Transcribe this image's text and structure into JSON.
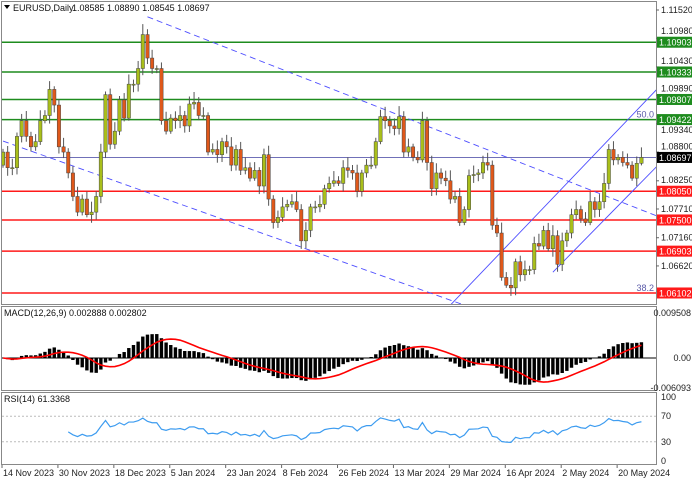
{
  "header": {
    "symbol": "EURUSD,Daily",
    "ohlc": "1.08585 1.08890 1.08545 1.08697"
  },
  "colors": {
    "bull": "#a9bf1a",
    "bear": "#e0581a",
    "resistance": "#1e8c1e",
    "support": "#ff1a1a",
    "current": "#000000",
    "trendline": "#4d4dff",
    "macd_hist": "#000000",
    "macd_signal": "#ff0000",
    "rsi": "#3d9cf0"
  },
  "chart_data": {
    "type": "candlestick",
    "symbol": "EURUSD",
    "timeframe": "Daily",
    "price_axis_ticks": [
      "1.11520",
      "1.10980",
      "1.10430",
      "1.09890",
      "1.09340",
      "1.08800",
      "1.08250",
      "1.07710",
      "1.07160",
      "1.06620"
    ],
    "price_range": [
      1.0585,
      1.1172
    ],
    "date_labels": [
      "14 Nov 2023",
      "30 Nov 2023",
      "18 Dec 2023",
      "5 Jan 2024",
      "23 Jan 2024",
      "8 Feb 2024",
      "26 Feb 2024",
      "13 Mar 2024",
      "29 Mar 2024",
      "16 Apr 2024",
      "2 May 2024",
      "20 May 2024"
    ],
    "last_bar": {
      "open": 1.08585,
      "high": 1.0889,
      "low": 1.08545,
      "close": 1.08697
    },
    "closes": [
      [
        "2023-11-14",
        1.088
      ],
      [
        "2023-11-15",
        1.085
      ],
      [
        "2023-11-16",
        1.085
      ],
      [
        "2023-11-17",
        1.091
      ],
      [
        "2023-11-20",
        1.094
      ],
      [
        "2023-11-21",
        1.091
      ],
      [
        "2023-11-22",
        1.089
      ],
      [
        "2023-11-23",
        1.09
      ],
      [
        "2023-11-24",
        1.094
      ],
      [
        "2023-11-27",
        1.095
      ],
      [
        "2023-11-28",
        1.1
      ],
      [
        "2023-11-29",
        1.097
      ],
      [
        "2023-11-30",
        1.089
      ],
      [
        "2023-12-01",
        1.088
      ],
      [
        "2023-12-04",
        1.084
      ],
      [
        "2023-12-05",
        1.0795
      ],
      [
        "2023-12-06",
        1.0765
      ],
      [
        "2023-12-07",
        1.079
      ],
      [
        "2023-12-08",
        1.076
      ],
      [
        "2023-12-11",
        1.0765
      ],
      [
        "2023-12-12",
        1.0795
      ],
      [
        "2023-12-13",
        1.088
      ],
      [
        "2023-12-14",
        1.099
      ],
      [
        "2023-12-15",
        1.0895
      ],
      [
        "2023-12-18",
        1.092
      ],
      [
        "2023-12-19",
        1.098
      ],
      [
        "2023-12-20",
        1.0945
      ],
      [
        "2023-12-21",
        1.101
      ],
      [
        "2023-12-22",
        1.101
      ],
      [
        "2023-12-26",
        1.104
      ],
      [
        "2023-12-27",
        1.1105
      ],
      [
        "2023-12-28",
        1.106
      ],
      [
        "2023-12-29",
        1.104
      ],
      [
        "2024-01-01",
        1.104
      ],
      [
        "2024-01-02",
        1.094
      ],
      [
        "2024-01-03",
        1.092
      ],
      [
        "2024-01-04",
        1.0945
      ],
      [
        "2024-01-05",
        1.094
      ],
      [
        "2024-01-08",
        1.095
      ],
      [
        "2024-01-09",
        1.093
      ],
      [
        "2024-01-10",
        1.0972
      ],
      [
        "2024-01-11",
        1.0975
      ],
      [
        "2024-01-12",
        1.095
      ],
      [
        "2024-01-15",
        1.095
      ],
      [
        "2024-01-16",
        1.088
      ],
      [
        "2024-01-17",
        1.0885
      ],
      [
        "2024-01-18",
        1.0875
      ],
      [
        "2024-01-19",
        1.09
      ],
      [
        "2024-01-22",
        1.089
      ],
      [
        "2024-01-23",
        1.0855
      ],
      [
        "2024-01-24",
        1.0885
      ],
      [
        "2024-01-25",
        1.0845
      ],
      [
        "2024-01-26",
        1.085
      ],
      [
        "2024-01-29",
        1.083
      ],
      [
        "2024-01-30",
        1.0845
      ],
      [
        "2024-01-31",
        1.0815
      ],
      [
        "2024-02-01",
        1.0875
      ],
      [
        "2024-02-02",
        1.079
      ],
      [
        "2024-02-05",
        1.0745
      ],
      [
        "2024-02-06",
        1.0755
      ],
      [
        "2024-02-07",
        1.0775
      ],
      [
        "2024-02-08",
        1.078
      ],
      [
        "2024-02-09",
        1.0785
      ],
      [
        "2024-02-12",
        1.077
      ],
      [
        "2024-02-13",
        1.071
      ],
      [
        "2024-02-14",
        1.073
      ],
      [
        "2024-02-15",
        1.0775
      ],
      [
        "2024-02-16",
        1.0775
      ],
      [
        "2024-02-19",
        1.078
      ],
      [
        "2024-02-20",
        1.081
      ],
      [
        "2024-02-21",
        1.082
      ],
      [
        "2024-02-22",
        1.0825
      ],
      [
        "2024-02-23",
        1.082
      ],
      [
        "2024-02-26",
        1.085
      ],
      [
        "2024-02-27",
        1.0845
      ],
      [
        "2024-02-28",
        1.084
      ],
      [
        "2024-02-29",
        1.0805
      ],
      [
        "2024-03-01",
        1.084
      ],
      [
        "2024-03-04",
        1.0855
      ],
      [
        "2024-03-05",
        1.0855
      ],
      [
        "2024-03-06",
        1.09
      ],
      [
        "2024-03-07",
        1.0948
      ],
      [
        "2024-03-08",
        1.094
      ],
      [
        "2024-03-11",
        1.093
      ],
      [
        "2024-03-12",
        1.0925
      ],
      [
        "2024-03-13",
        1.0948
      ],
      [
        "2024-03-14",
        1.088
      ],
      [
        "2024-03-15",
        1.089
      ],
      [
        "2024-03-18",
        1.087
      ],
      [
        "2024-03-19",
        1.0865
      ],
      [
        "2024-03-20",
        1.094
      ],
      [
        "2024-03-21",
        1.086
      ],
      [
        "2024-03-22",
        1.081
      ],
      [
        "2024-03-25",
        1.084
      ],
      [
        "2024-03-26",
        1.083
      ],
      [
        "2024-03-27",
        1.0825
      ],
      [
        "2024-03-28",
        1.079
      ],
      [
        "2024-03-29",
        1.0795
      ],
      [
        "2024-04-01",
        1.0745
      ],
      [
        "2024-04-02",
        1.077
      ],
      [
        "2024-04-03",
        1.0835
      ],
      [
        "2024-04-04",
        1.0837
      ],
      [
        "2024-04-05",
        1.084
      ],
      [
        "2024-04-08",
        1.086
      ],
      [
        "2024-04-09",
        1.0855
      ],
      [
        "2024-04-10",
        1.074
      ],
      [
        "2024-04-11",
        1.0725
      ],
      [
        "2024-04-12",
        1.064
      ],
      [
        "2024-04-15",
        1.0625
      ],
      [
        "2024-04-16",
        1.062
      ],
      [
        "2024-04-17",
        1.067
      ],
      [
        "2024-04-18",
        1.0645
      ],
      [
        "2024-04-19",
        1.0655
      ],
      [
        "2024-04-22",
        1.0655
      ],
      [
        "2024-04-23",
        1.0705
      ],
      [
        "2024-04-24",
        1.07
      ],
      [
        "2024-04-25",
        1.073
      ],
      [
        "2024-04-26",
        1.0695
      ],
      [
        "2024-04-29",
        1.072
      ],
      [
        "2024-04-30",
        1.0665
      ],
      [
        "2024-05-01",
        1.071
      ],
      [
        "2024-05-02",
        1.0725
      ],
      [
        "2024-05-03",
        1.076
      ],
      [
        "2024-05-06",
        1.077
      ],
      [
        "2024-05-07",
        1.0752
      ],
      [
        "2024-05-08",
        1.0745
      ],
      [
        "2024-05-09",
        1.0785
      ],
      [
        "2024-05-10",
        1.077
      ],
      [
        "2024-05-13",
        1.0785
      ],
      [
        "2024-05-14",
        1.082
      ],
      [
        "2024-05-15",
        1.0885
      ],
      [
        "2024-05-16",
        1.0865
      ],
      [
        "2024-05-17",
        1.087
      ],
      [
        "2024-05-20",
        1.086
      ],
      [
        "2024-05-21",
        1.0855
      ],
      [
        "2024-05-22",
        1.083
      ],
      [
        "2024-05-23",
        1.08585
      ],
      [
        "2024-05-24",
        1.08697
      ]
    ],
    "levels": [
      {
        "price": 1.10903,
        "label": "1.10903",
        "kind": "resistance"
      },
      {
        "price": 1.10333,
        "label": "1.10333",
        "kind": "resistance"
      },
      {
        "price": 1.09807,
        "label": "1.09807",
        "kind": "resistance"
      },
      {
        "price": 1.09422,
        "label": "1.09422",
        "kind": "resistance"
      },
      {
        "price": 1.08697,
        "label": "1.08697",
        "kind": "current"
      },
      {
        "price": 1.0805,
        "label": "1.08050",
        "kind": "support"
      },
      {
        "price": 1.075,
        "label": "1.07500",
        "kind": "support"
      },
      {
        "price": 1.06903,
        "label": "1.06903",
        "kind": "support"
      },
      {
        "price": 1.06102,
        "label": "1.06102",
        "kind": "support"
      }
    ],
    "fib_labels": [
      {
        "text": "50.0",
        "price": 1.09422
      },
      {
        "text": "38.2",
        "price": 1.06102
      }
    ],
    "trendlines": [
      {
        "style": "dashed",
        "from": [
          "2023-12-28",
          1.1139
        ],
        "to": [
          "2024-04-24",
          1.0846
        ],
        "ray": true
      },
      {
        "style": "dashed",
        "from": [
          "2023-11-14",
          1.0901
        ],
        "to": [
          "2024-04-02",
          1.0587
        ],
        "ray": true
      },
      {
        "style": "solid",
        "from": [
          "2024-03-28",
          1.0587
        ],
        "to": [
          "2024-05-15",
          1.0904
        ],
        "ray": true
      },
      {
        "style": "solid",
        "from": [
          "2024-04-29",
          1.065
        ],
        "to": [
          "2024-05-15",
          1.0759
        ],
        "ray": true
      }
    ],
    "macd": {
      "label": "MACD(12,26,9) 0.002888 0.002802",
      "axis_ticks": [
        "0.009508",
        "0.00",
        "-0.006093"
      ],
      "range": [
        -0.006093,
        0.009508
      ]
    },
    "rsi": {
      "label": "RSI(14) 61.3368",
      "axis_ticks": [
        "100",
        "70",
        "30",
        "0"
      ],
      "levels": [
        70,
        30
      ],
      "range": [
        0,
        100
      ]
    }
  }
}
